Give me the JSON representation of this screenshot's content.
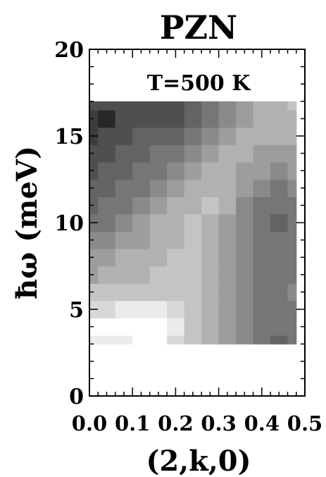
{
  "chart_data": {
    "type": "heatmap",
    "title": "PZN",
    "annotation": "T=500 K",
    "xlabel": "(2,k,0)",
    "ylabel": "ħω (meV)",
    "xlim": [
      0.0,
      0.5
    ],
    "ylim": [
      0,
      20
    ],
    "x_ticks": [
      "0.0",
      "0.1",
      "0.2",
      "0.3",
      "0.4",
      "0.5"
    ],
    "y_ticks": [
      "0",
      "5",
      "10",
      "15",
      "20"
    ],
    "data_extent": {
      "x": [
        0.0,
        0.48
      ],
      "y": [
        3,
        17
      ]
    },
    "grid": false,
    "colormap": "grayscale (dark = low intensity, light = high intensity)",
    "x": [
      0.0,
      0.04,
      0.08,
      0.12,
      0.16,
      0.2,
      0.24,
      0.28,
      0.32,
      0.36,
      0.4,
      0.44,
      0.48
    ],
    "y": [
      3,
      4,
      5,
      6,
      7,
      8,
      9,
      10,
      11,
      12,
      13,
      14,
      15,
      16,
      17
    ],
    "z": [
      [
        0.92,
        0.94,
        0.95,
        0.96,
        0.96,
        0.86,
        0.74,
        0.62,
        0.52,
        0.44,
        0.38,
        0.3,
        0.36
      ],
      [
        0.98,
        1.0,
        1.0,
        1.0,
        1.0,
        0.88,
        0.74,
        0.62,
        0.5,
        0.42,
        0.36,
        0.32,
        0.38
      ],
      [
        0.84,
        0.86,
        0.9,
        0.92,
        0.88,
        0.8,
        0.72,
        0.6,
        0.5,
        0.42,
        0.36,
        0.36,
        0.4
      ],
      [
        0.7,
        0.72,
        0.74,
        0.76,
        0.76,
        0.74,
        0.7,
        0.62,
        0.52,
        0.44,
        0.38,
        0.38,
        0.42
      ],
      [
        0.58,
        0.62,
        0.66,
        0.68,
        0.7,
        0.72,
        0.7,
        0.62,
        0.52,
        0.46,
        0.4,
        0.38,
        0.4
      ],
      [
        0.5,
        0.56,
        0.6,
        0.64,
        0.66,
        0.7,
        0.7,
        0.64,
        0.54,
        0.46,
        0.4,
        0.36,
        0.38
      ],
      [
        0.42,
        0.48,
        0.54,
        0.58,
        0.64,
        0.68,
        0.72,
        0.66,
        0.56,
        0.46,
        0.38,
        0.32,
        0.34
      ],
      [
        0.36,
        0.4,
        0.46,
        0.52,
        0.6,
        0.66,
        0.7,
        0.68,
        0.58,
        0.46,
        0.36,
        0.3,
        0.32
      ],
      [
        0.3,
        0.34,
        0.4,
        0.46,
        0.54,
        0.6,
        0.66,
        0.7,
        0.6,
        0.48,
        0.38,
        0.34,
        0.38
      ],
      [
        0.26,
        0.28,
        0.32,
        0.4,
        0.48,
        0.56,
        0.62,
        0.68,
        0.62,
        0.52,
        0.42,
        0.4,
        0.44
      ],
      [
        0.22,
        0.24,
        0.28,
        0.32,
        0.4,
        0.48,
        0.56,
        0.66,
        0.66,
        0.58,
        0.5,
        0.46,
        0.5
      ],
      [
        0.18,
        0.2,
        0.24,
        0.28,
        0.32,
        0.38,
        0.46,
        0.56,
        0.64,
        0.62,
        0.56,
        0.54,
        0.58
      ],
      [
        0.12,
        0.14,
        0.2,
        0.26,
        0.28,
        0.3,
        0.36,
        0.46,
        0.58,
        0.62,
        0.6,
        0.62,
        0.64
      ],
      [
        0.06,
        0.04,
        0.14,
        0.2,
        0.14,
        0.2,
        0.26,
        0.34,
        0.44,
        0.54,
        0.6,
        0.66,
        0.68
      ],
      [
        0.18,
        0.14,
        0.16,
        0.18,
        0.2,
        0.22,
        0.28,
        0.34,
        0.42,
        0.52,
        0.6,
        0.66,
        0.7
      ]
    ]
  }
}
